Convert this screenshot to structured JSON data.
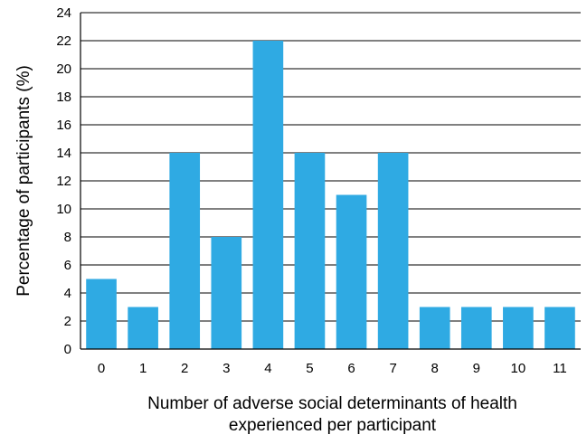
{
  "chart_data": {
    "type": "bar",
    "categories": [
      "0",
      "1",
      "2",
      "3",
      "4",
      "5",
      "6",
      "7",
      "8",
      "9",
      "10",
      "11"
    ],
    "values": [
      5,
      3,
      14,
      8,
      22,
      14,
      11,
      14,
      3,
      3,
      3,
      3
    ],
    "y_ticks": [
      "0",
      "2",
      "4",
      "6",
      "8",
      "10",
      "12",
      "14",
      "16",
      "18",
      "20",
      "22",
      "24"
    ],
    "ylim": [
      0,
      24
    ],
    "ylabel": "Percentage of participants (%)",
    "xlabel_lines": [
      "Number of adverse social determinants of health",
      "experienced per participant"
    ],
    "grid": "horizontal",
    "legend": "none",
    "bar_color": "#2faae3",
    "grid_color": "#000000"
  }
}
